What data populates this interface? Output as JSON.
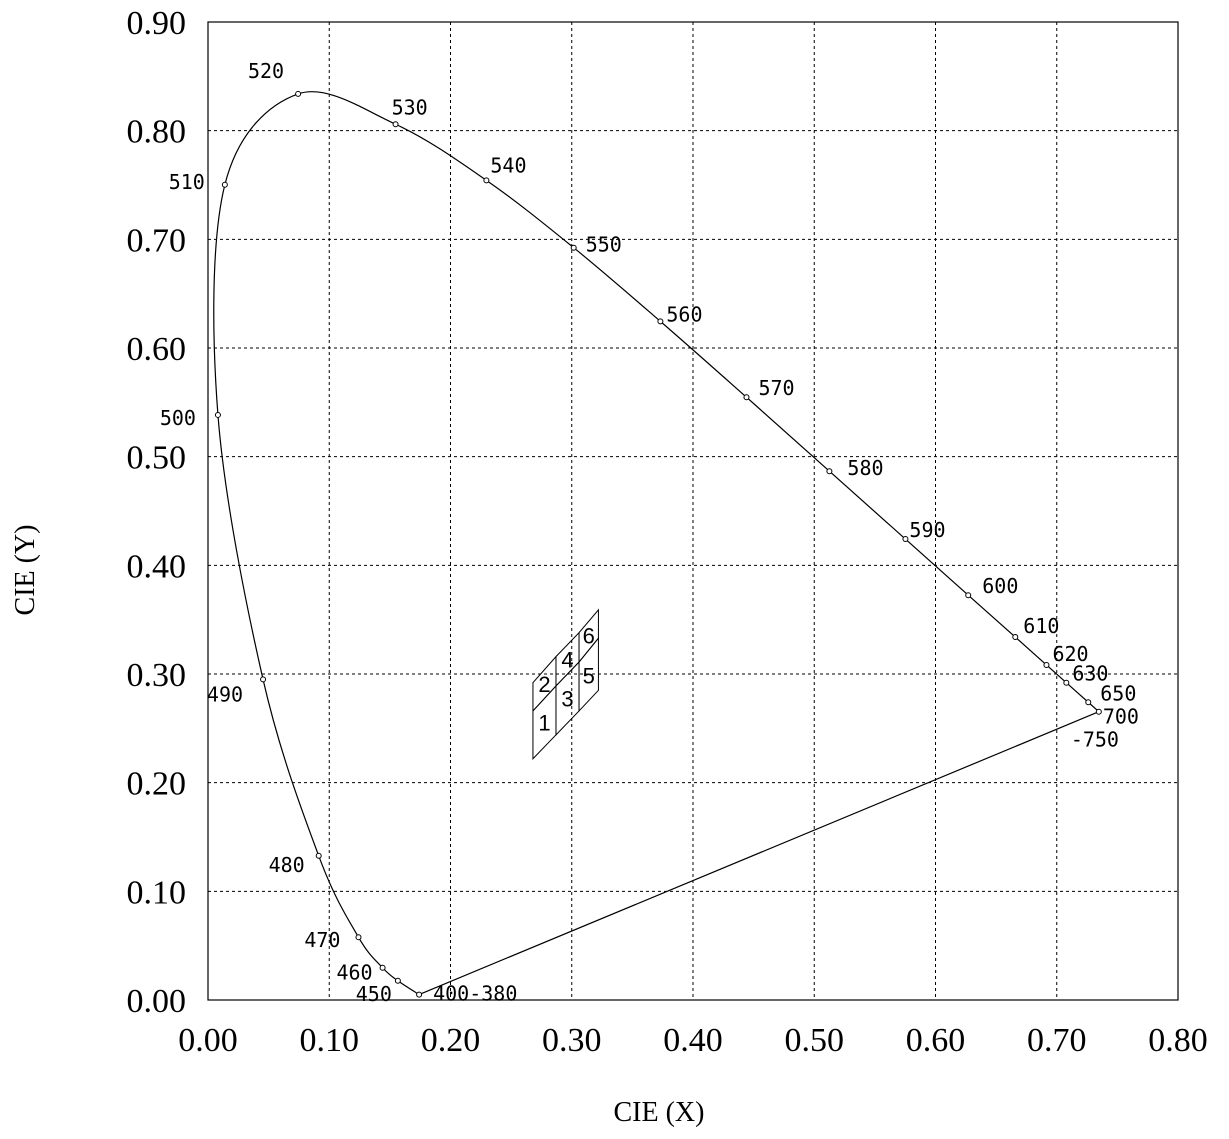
{
  "chart_data": {
    "type": "line",
    "xlabel": "CIE (X)",
    "ylabel": "CIE (Y)",
    "xlim": [
      0,
      0.8
    ],
    "ylim": [
      0,
      0.9
    ],
    "x_ticks": [
      "0.00",
      "0.10",
      "0.20",
      "0.30",
      "0.40",
      "0.50",
      "0.60",
      "0.70",
      "0.80"
    ],
    "y_ticks": [
      "0.00",
      "0.10",
      "0.20",
      "0.30",
      "0.40",
      "0.50",
      "0.60",
      "0.70",
      "0.80",
      "0.90"
    ],
    "grid": true,
    "series": [
      {
        "points": [
          {
            "label": "400-380",
            "x": 0.1741,
            "y": 0.005
          },
          {
            "label": "450",
            "x": 0.1566,
            "y": 0.0177
          },
          {
            "label": "460",
            "x": 0.144,
            "y": 0.0297
          },
          {
            "label": "470",
            "x": 0.1241,
            "y": 0.0578
          },
          {
            "label": "480",
            "x": 0.0913,
            "y": 0.1327
          },
          {
            "label": "490",
            "x": 0.0454,
            "y": 0.295
          },
          {
            "label": "500",
            "x": 0.0082,
            "y": 0.5384
          },
          {
            "label": "510",
            "x": 0.0139,
            "y": 0.7502
          },
          {
            "label": "520",
            "x": 0.0743,
            "y": 0.8338
          },
          {
            "label": "530",
            "x": 0.1547,
            "y": 0.8059
          },
          {
            "label": "540",
            "x": 0.2296,
            "y": 0.7543
          },
          {
            "label": "550",
            "x": 0.3016,
            "y": 0.6923
          },
          {
            "label": "560",
            "x": 0.3731,
            "y": 0.6245
          },
          {
            "label": "570",
            "x": 0.4441,
            "y": 0.5547
          },
          {
            "label": "580",
            "x": 0.5125,
            "y": 0.4866
          },
          {
            "label": "590",
            "x": 0.5752,
            "y": 0.4242
          },
          {
            "label": "600",
            "x": 0.627,
            "y": 0.3725
          },
          {
            "label": "610",
            "x": 0.6658,
            "y": 0.334
          },
          {
            "label": "620",
            "x": 0.6915,
            "y": 0.3083
          },
          {
            "label": "630",
            "x": 0.7079,
            "y": 0.292
          },
          {
            "label": "650",
            "x": 0.726,
            "y": 0.274
          },
          {
            "label": "700",
            "x": 0.7347,
            "y": 0.2653
          },
          {
            "label": "-750",
            "x": 0.7347,
            "y": 0.2653
          }
        ]
      }
    ],
    "regions": [
      {
        "label": "1",
        "corners": [
          [
            0.268,
            0.222
          ],
          [
            0.287,
            0.244
          ],
          [
            0.287,
            0.289
          ],
          [
            0.268,
            0.266
          ]
        ]
      },
      {
        "label": "2",
        "corners": [
          [
            0.268,
            0.266
          ],
          [
            0.287,
            0.289
          ],
          [
            0.287,
            0.316
          ],
          [
            0.268,
            0.292
          ]
        ]
      },
      {
        "label": "3",
        "corners": [
          [
            0.287,
            0.244
          ],
          [
            0.306,
            0.266
          ],
          [
            0.306,
            0.311
          ],
          [
            0.287,
            0.289
          ]
        ]
      },
      {
        "label": "4",
        "corners": [
          [
            0.287,
            0.289
          ],
          [
            0.306,
            0.311
          ],
          [
            0.306,
            0.338
          ],
          [
            0.287,
            0.316
          ]
        ]
      },
      {
        "label": "5",
        "corners": [
          [
            0.306,
            0.266
          ],
          [
            0.322,
            0.285
          ],
          [
            0.322,
            0.333
          ],
          [
            0.306,
            0.311
          ]
        ]
      },
      {
        "label": "6",
        "corners": [
          [
            0.306,
            0.311
          ],
          [
            0.322,
            0.333
          ],
          [
            0.322,
            0.359
          ],
          [
            0.306,
            0.338
          ]
        ]
      }
    ]
  }
}
